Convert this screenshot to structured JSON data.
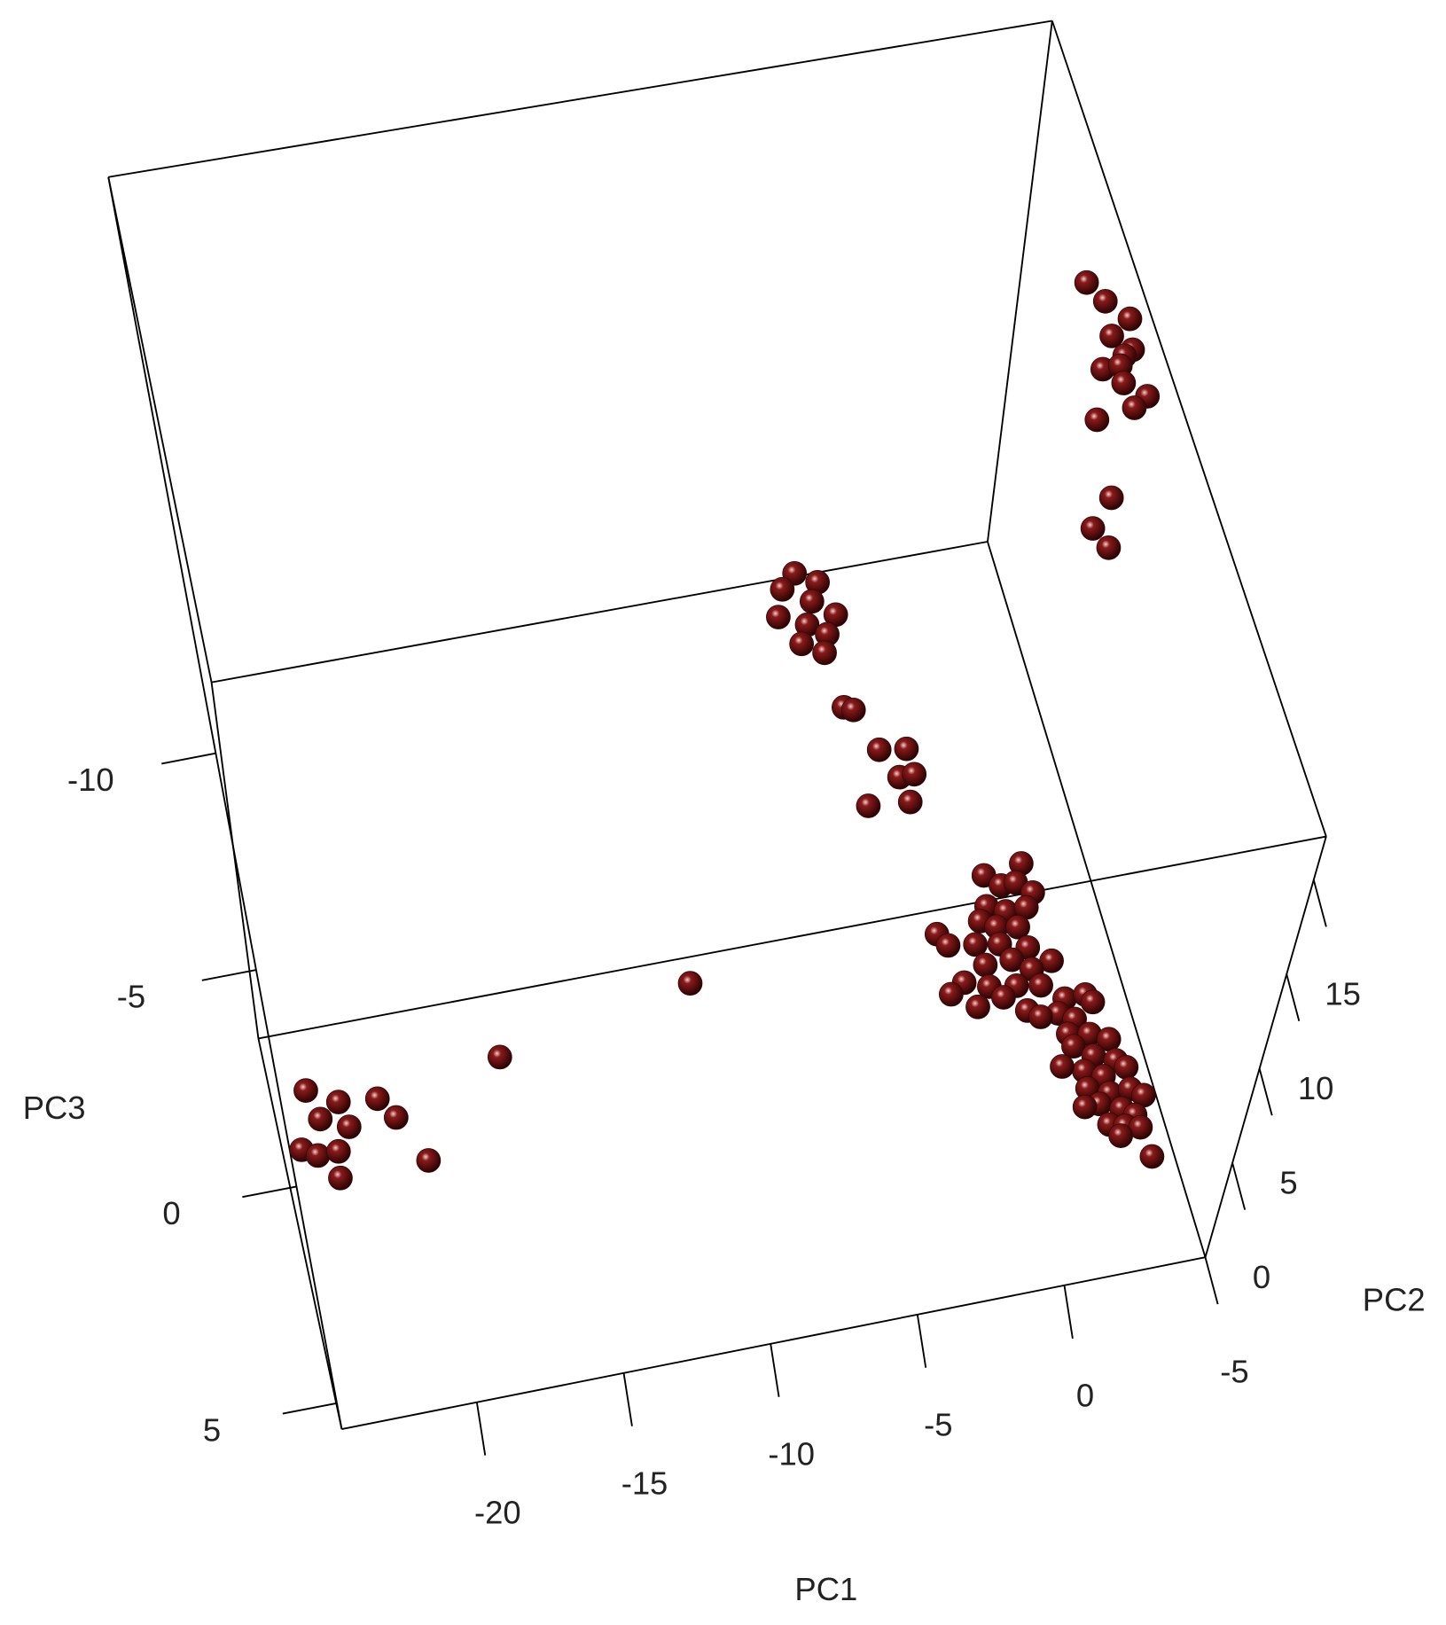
{
  "chart_data": {
    "type": "scatter3d",
    "x_label": "PC1",
    "y_label": "PC2",
    "z_label": "PC3",
    "xlim": [
      -24.6,
      4.8
    ],
    "ylim": [
      -5,
      17.3
    ],
    "zlim": [
      -23.3,
      5.6
    ],
    "xticks": [
      -20,
      -15,
      -10,
      -5,
      0
    ],
    "yticks": [
      -5,
      0,
      5,
      10,
      15
    ],
    "zticks": [
      -10,
      -5,
      0,
      5
    ],
    "series": [
      {
        "color": "#8b1a1a",
        "x": [
          1.0,
          1.5,
          2.2,
          1.5,
          2.1,
          1.8,
          1.0,
          1.6,
          1.6,
          2.3,
          1.8,
          0.5,
          0.5,
          -0.3,
          0.1,
          -8.9,
          -8.2,
          -9.4,
          -8.5,
          -7.8,
          -9.7,
          -8.8,
          -8.2,
          -9.1,
          -8.4,
          -8.1,
          -7.8,
          -7.2,
          -6.3,
          -6.7,
          -6.2,
          -7.9,
          -6.5,
          -1.6,
          -0.3,
          -1.1,
          -0.6,
          -0.1,
          -1.7,
          -1.1,
          -0.4,
          -2.0,
          -1.5,
          -0.8,
          -3.5,
          -3.2,
          -2.3,
          -1.5,
          -0.6,
          0.1,
          -2.1,
          -1.2,
          -0.6,
          -2.9,
          -2.1,
          -1.2,
          -3.4,
          -2.6,
          -1.7,
          -1.0,
          -0.4,
          0.3,
          1.0,
          1.2,
          0.0,
          0.5,
          -0.6,
          0.2,
          0.9,
          1.5,
          0.3,
          0.9,
          1.6,
          0.5,
          1.1,
          1.9,
          0.5,
          1.2,
          1.9,
          2.3,
          0.8,
          1.5,
          1.9,
          1.0,
          1.5,
          2.0,
          1.3,
          2.2,
          -0.2,
          0.3,
          -11.9,
          -18.6,
          -24.0,
          -23.0,
          -21.7,
          -23.7,
          -22.8,
          -21.2,
          -24.5,
          -24.0,
          -23.3,
          -20.4,
          -23.4
        ],
        "y": [
          15,
          15,
          15,
          15,
          15,
          15,
          15,
          15,
          15,
          15,
          15,
          15,
          15,
          15,
          15,
          10,
          10,
          10,
          10,
          10,
          10,
          10,
          10,
          10,
          10,
          10,
          10,
          10,
          10,
          10,
          10,
          10,
          10,
          0,
          0,
          0,
          0,
          0,
          0,
          0,
          0,
          0,
          0,
          0,
          0,
          0,
          0,
          0,
          0,
          0,
          0,
          0,
          0,
          0,
          0,
          0,
          0,
          0,
          0,
          0,
          0,
          0,
          0,
          0,
          0,
          0,
          0,
          0,
          0,
          0,
          0,
          0,
          0,
          0,
          0,
          0,
          0,
          0,
          0,
          0,
          0,
          0,
          0,
          0,
          0,
          0,
          0,
          0,
          0,
          0,
          0,
          0,
          -4,
          -4,
          -4,
          -4,
          -4,
          -4,
          -4,
          -4,
          -4,
          -4,
          -4
        ],
        "z": [
          -8.7,
          -8.2,
          -7.7,
          -7.4,
          -7.0,
          -6.9,
          -6.7,
          -6.7,
          -6.3,
          -5.9,
          -5.7,
          -5.6,
          -3.8,
          -3.2,
          -2.7,
          -5.5,
          -5.2,
          -5.2,
          -4.8,
          -4.4,
          -4.6,
          -4.3,
          -4.0,
          -3.9,
          -3.6,
          -2.3,
          -2.2,
          -1.2,
          -1.1,
          -0.5,
          -0.5,
          0.0,
          0.1,
          -1.9,
          -2.0,
          -1.6,
          -1.6,
          -1.3,
          -1.2,
          -1.0,
          -1.0,
          -0.9,
          -0.7,
          -0.6,
          -0.8,
          -0.5,
          -0.4,
          -0.3,
          -0.1,
          0.3,
          0.1,
          0.1,
          0.4,
          0.4,
          0.6,
          0.7,
          0.6,
          1.0,
          0.9,
          1.3,
          0.8,
          1.2,
          1.2,
          1.4,
          1.5,
          1.7,
          1.5,
          2.0,
          2.1,
          2.3,
          2.3,
          2.6,
          2.8,
          2.9,
          3.1,
          3.0,
          3.3,
          3.5,
          3.5,
          3.7,
          3.7,
          3.9,
          4.1,
          4.2,
          4.3,
          4.4,
          4.5,
          5.1,
          2.7,
          3.7,
          -0.8,
          0.0,
          -1.7,
          -1.3,
          -1.2,
          -1.0,
          -0.7,
          -0.7,
          -0.4,
          -0.2,
          -0.2,
          0.4,
          0.4
        ]
      }
    ]
  }
}
